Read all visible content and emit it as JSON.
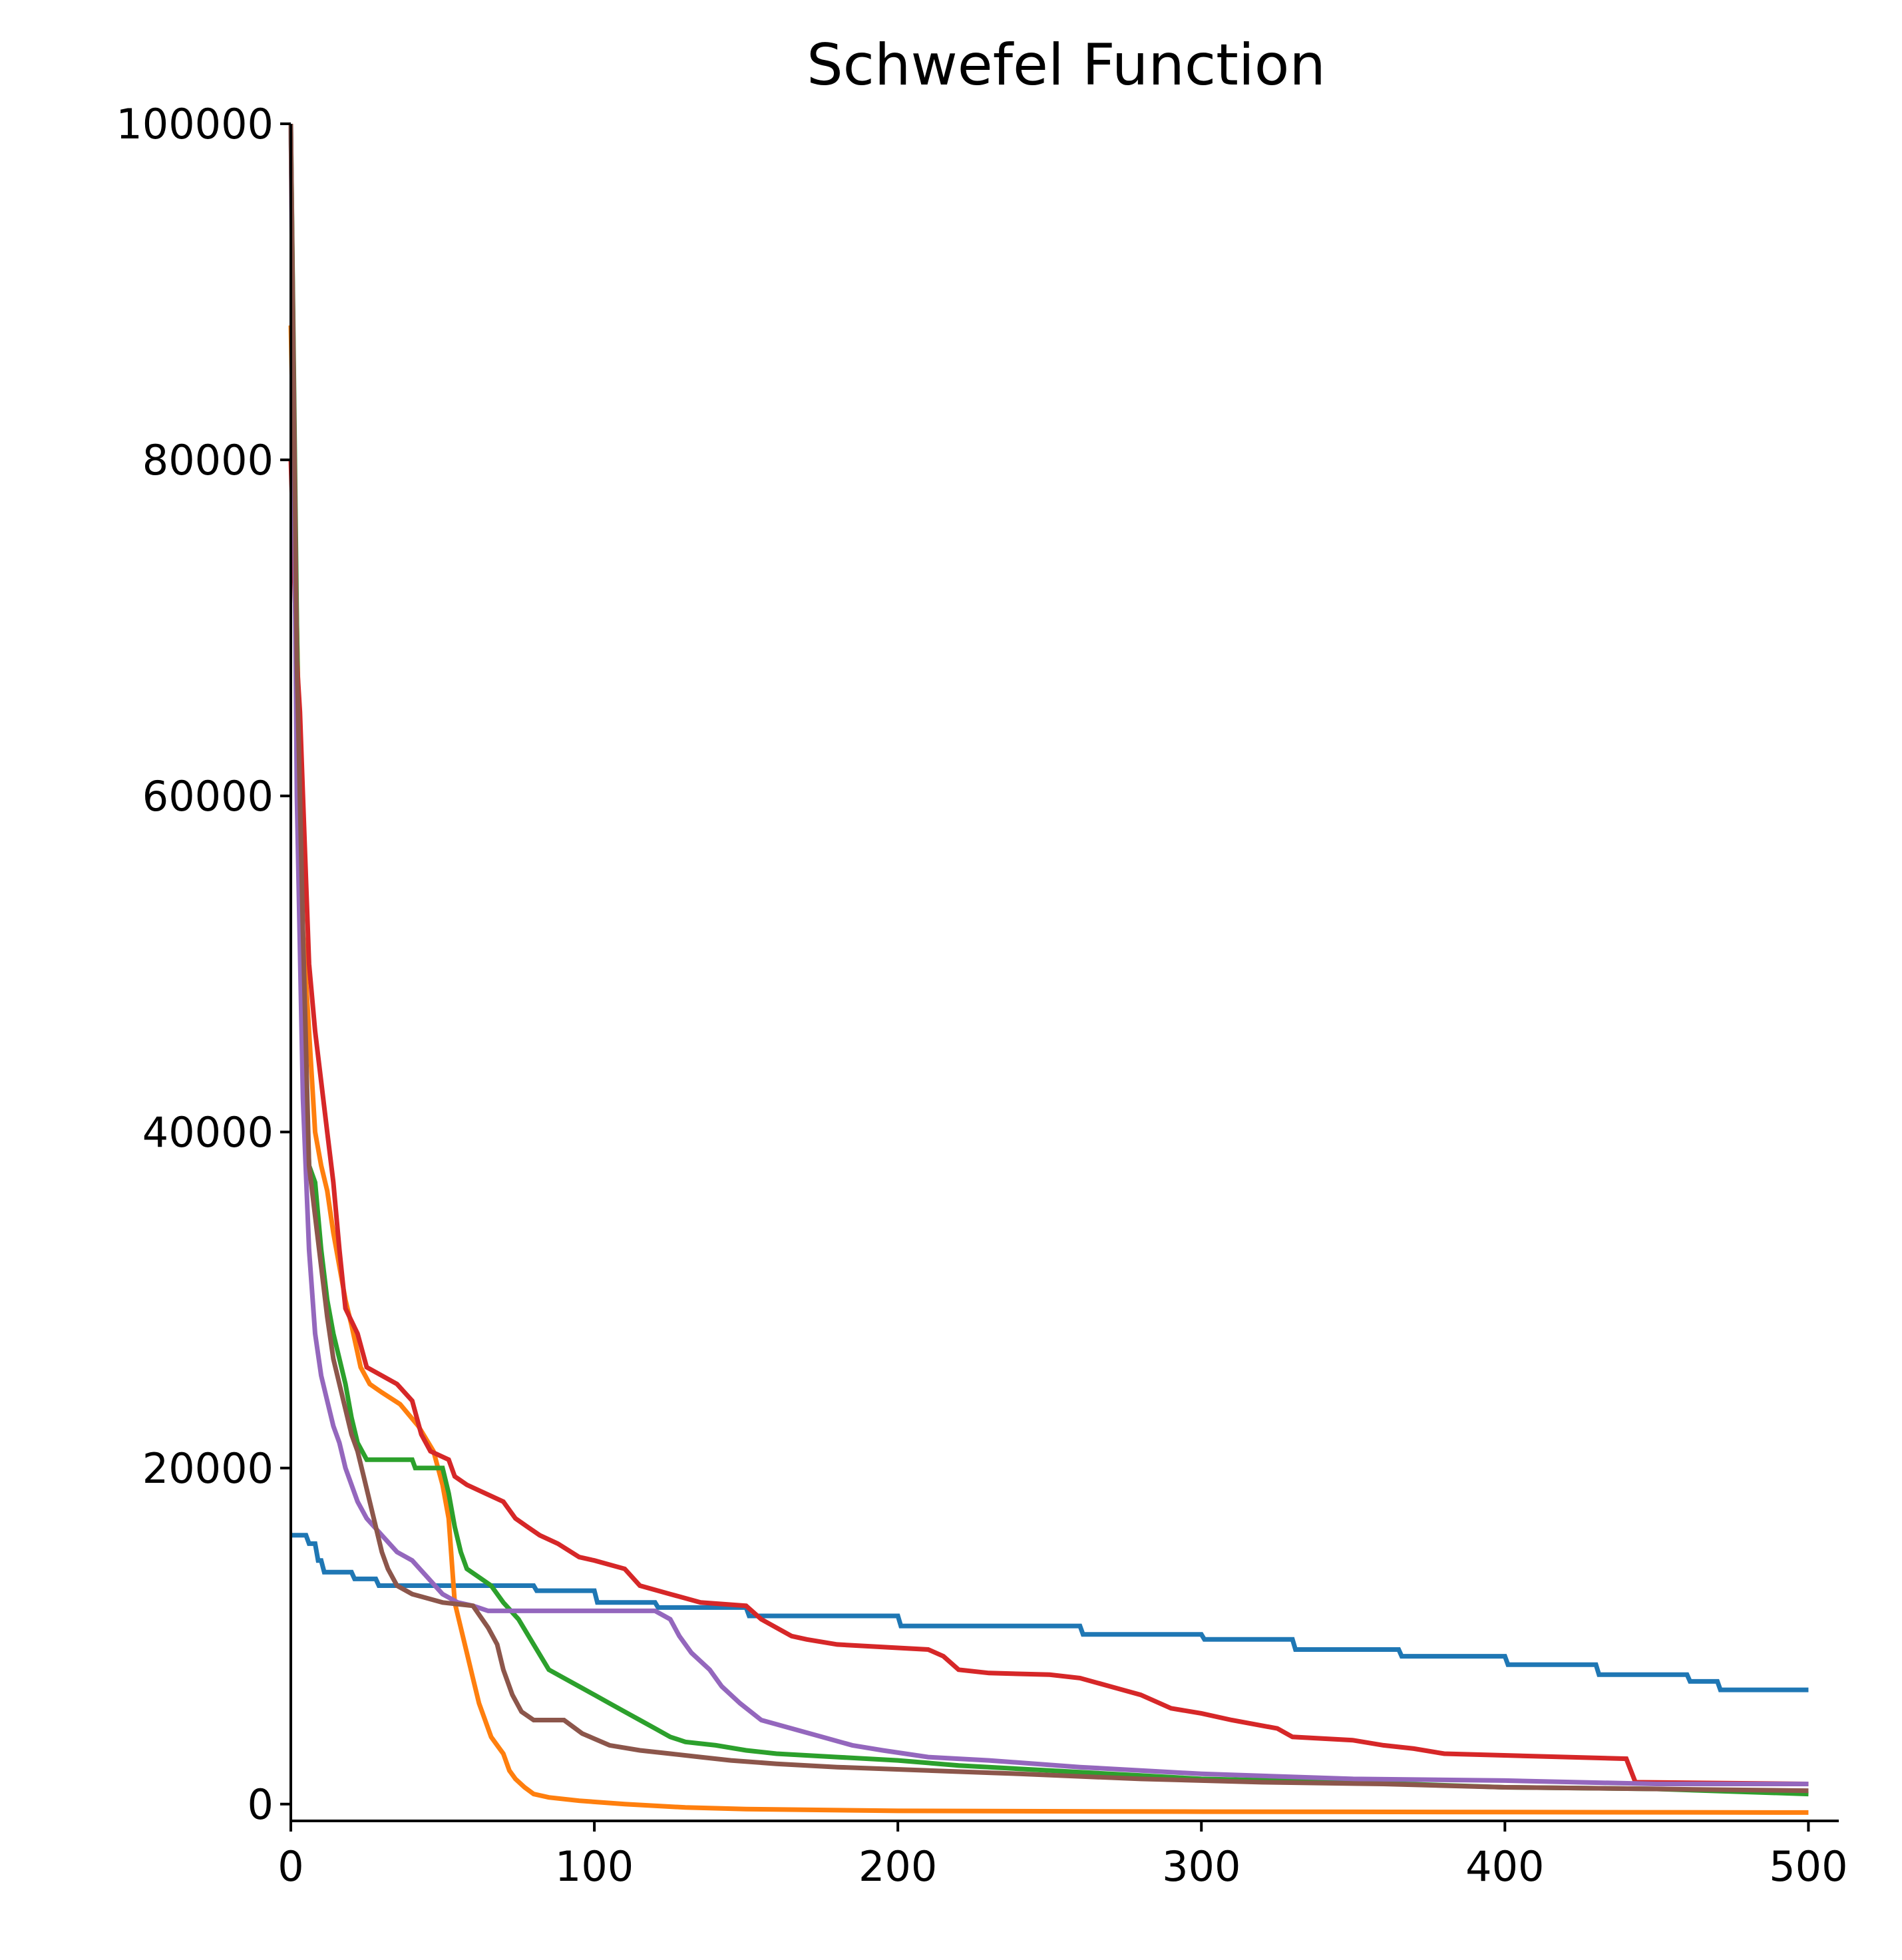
{
  "chart_data": {
    "type": "line",
    "title": "Schwefel Function",
    "xlabel": "",
    "ylabel": "",
    "xlim": [
      0,
      510
    ],
    "ylim": [
      -1000,
      100000
    ],
    "x_ticks": [
      "0",
      "100",
      "200",
      "300",
      "400",
      "500"
    ],
    "y_ticks": [
      "0",
      "20000",
      "40000",
      "60000",
      "80000",
      "100000"
    ],
    "grid": false,
    "legend": "none",
    "series": [
      {
        "color": "#1f77b4",
        "points": [
          [
            0,
            16000
          ],
          [
            5,
            16000
          ],
          [
            6,
            15500
          ],
          [
            8,
            15500
          ],
          [
            9,
            14500
          ],
          [
            10,
            14500
          ],
          [
            11,
            13800
          ],
          [
            20,
            13800
          ],
          [
            21,
            13400
          ],
          [
            28,
            13400
          ],
          [
            29,
            13000
          ],
          [
            80,
            13000
          ],
          [
            81,
            12700
          ],
          [
            100,
            12700
          ],
          [
            101,
            12000
          ],
          [
            120,
            12000
          ],
          [
            121,
            11700
          ],
          [
            150,
            11700
          ],
          [
            151,
            11200
          ],
          [
            200,
            11200
          ],
          [
            201,
            10600
          ],
          [
            260,
            10600
          ],
          [
            261,
            10100
          ],
          [
            300,
            10100
          ],
          [
            301,
            9800
          ],
          [
            330,
            9800
          ],
          [
            331,
            9200
          ],
          [
            365,
            9200
          ],
          [
            366,
            8800
          ],
          [
            400,
            8800
          ],
          [
            401,
            8300
          ],
          [
            430,
            8300
          ],
          [
            431,
            7700
          ],
          [
            460,
            7700
          ],
          [
            461,
            7300
          ],
          [
            470,
            7300
          ],
          [
            471,
            6800
          ],
          [
            500,
            6800
          ]
        ]
      },
      {
        "color": "#ff7f0e",
        "points": [
          [
            0,
            88000
          ],
          [
            2,
            70000
          ],
          [
            4,
            52000
          ],
          [
            6,
            46000
          ],
          [
            8,
            40000
          ],
          [
            10,
            38000
          ],
          [
            12,
            36500
          ],
          [
            14,
            34000
          ],
          [
            16,
            32000
          ],
          [
            18,
            30000
          ],
          [
            20,
            28500
          ],
          [
            23,
            26000
          ],
          [
            26,
            25000
          ],
          [
            30,
            24500
          ],
          [
            36,
            23800
          ],
          [
            42,
            22500
          ],
          [
            47,
            21000
          ],
          [
            50,
            19000
          ],
          [
            52,
            17000
          ],
          [
            54,
            12000
          ],
          [
            56,
            10500
          ],
          [
            58,
            9000
          ],
          [
            60,
            7500
          ],
          [
            62,
            6000
          ],
          [
            64,
            5000
          ],
          [
            66,
            4000
          ],
          [
            68,
            3500
          ],
          [
            70,
            3000
          ],
          [
            72,
            2000
          ],
          [
            74,
            1500
          ],
          [
            77,
            1000
          ],
          [
            80,
            600
          ],
          [
            85,
            400
          ],
          [
            95,
            200
          ],
          [
            110,
            0
          ],
          [
            130,
            -200
          ],
          [
            150,
            -300
          ],
          [
            200,
            -400
          ],
          [
            300,
            -450
          ],
          [
            500,
            -500
          ]
        ]
      },
      {
        "color": "#2ca02c",
        "points": [
          [
            0,
            100000
          ],
          [
            2,
            70000
          ],
          [
            4,
            48000
          ],
          [
            6,
            38000
          ],
          [
            8,
            37000
          ],
          [
            10,
            33000
          ],
          [
            12,
            30000
          ],
          [
            14,
            28000
          ],
          [
            16,
            26500
          ],
          [
            18,
            25000
          ],
          [
            20,
            23000
          ],
          [
            22,
            21500
          ],
          [
            25,
            20500
          ],
          [
            40,
            20500
          ],
          [
            41,
            20000
          ],
          [
            50,
            20000
          ],
          [
            52,
            18500
          ],
          [
            54,
            16500
          ],
          [
            56,
            15000
          ],
          [
            58,
            14000
          ],
          [
            62,
            13500
          ],
          [
            66,
            13000
          ],
          [
            70,
            12000
          ],
          [
            75,
            11000
          ],
          [
            80,
            9500
          ],
          [
            85,
            8000
          ],
          [
            90,
            7500
          ],
          [
            95,
            7000
          ],
          [
            100,
            6500
          ],
          [
            105,
            6000
          ],
          [
            110,
            5500
          ],
          [
            115,
            5000
          ],
          [
            120,
            4500
          ],
          [
            125,
            4000
          ],
          [
            130,
            3700
          ],
          [
            140,
            3500
          ],
          [
            150,
            3200
          ],
          [
            160,
            3000
          ],
          [
            180,
            2800
          ],
          [
            200,
            2600
          ],
          [
            220,
            2300
          ],
          [
            250,
            2000
          ],
          [
            280,
            1700
          ],
          [
            300,
            1500
          ],
          [
            350,
            1300
          ],
          [
            400,
            1000
          ],
          [
            450,
            900
          ],
          [
            500,
            600
          ]
        ]
      },
      {
        "color": "#d62728",
        "points": [
          [
            0,
            80000
          ],
          [
            2,
            68000
          ],
          [
            3,
            65000
          ],
          [
            4,
            60000
          ],
          [
            5,
            55000
          ],
          [
            6,
            50000
          ],
          [
            8,
            46000
          ],
          [
            10,
            43000
          ],
          [
            12,
            40000
          ],
          [
            14,
            37000
          ],
          [
            16,
            33000
          ],
          [
            18,
            29500
          ],
          [
            22,
            28000
          ],
          [
            25,
            26000
          ],
          [
            30,
            25500
          ],
          [
            35,
            25000
          ],
          [
            40,
            24000
          ],
          [
            43,
            22000
          ],
          [
            46,
            21000
          ],
          [
            52,
            20500
          ],
          [
            54,
            19500
          ],
          [
            58,
            19000
          ],
          [
            64,
            18500
          ],
          [
            70,
            18000
          ],
          [
            74,
            17000
          ],
          [
            78,
            16500
          ],
          [
            82,
            16000
          ],
          [
            88,
            15500
          ],
          [
            95,
            14700
          ],
          [
            100,
            14500
          ],
          [
            110,
            14000
          ],
          [
            115,
            13000
          ],
          [
            125,
            12500
          ],
          [
            135,
            12000
          ],
          [
            150,
            11800
          ],
          [
            155,
            11000
          ],
          [
            160,
            10500
          ],
          [
            165,
            10000
          ],
          [
            170,
            9800
          ],
          [
            180,
            9500
          ],
          [
            200,
            9300
          ],
          [
            210,
            9200
          ],
          [
            215,
            8800
          ],
          [
            220,
            8000
          ],
          [
            230,
            7800
          ],
          [
            250,
            7700
          ],
          [
            260,
            7500
          ],
          [
            270,
            7000
          ],
          [
            280,
            6500
          ],
          [
            290,
            5700
          ],
          [
            300,
            5400
          ],
          [
            310,
            5000
          ],
          [
            325,
            4500
          ],
          [
            330,
            4000
          ],
          [
            350,
            3800
          ],
          [
            360,
            3500
          ],
          [
            370,
            3300
          ],
          [
            380,
            3000
          ],
          [
            440,
            2700
          ],
          [
            443,
            1300
          ],
          [
            500,
            1200
          ]
        ]
      },
      {
        "color": "#9467bd",
        "points": [
          [
            0,
            100000
          ],
          [
            2,
            60000
          ],
          [
            4,
            42000
          ],
          [
            6,
            33000
          ],
          [
            8,
            28000
          ],
          [
            10,
            25500
          ],
          [
            12,
            24000
          ],
          [
            14,
            22500
          ],
          [
            16,
            21500
          ],
          [
            18,
            20000
          ],
          [
            20,
            19000
          ],
          [
            22,
            18000
          ],
          [
            25,
            17000
          ],
          [
            30,
            16000
          ],
          [
            35,
            15000
          ],
          [
            40,
            14500
          ],
          [
            45,
            13500
          ],
          [
            50,
            12500
          ],
          [
            55,
            12000
          ],
          [
            60,
            11800
          ],
          [
            65,
            11500
          ],
          [
            70,
            11500
          ],
          [
            120,
            11500
          ],
          [
            125,
            11000
          ],
          [
            128,
            10000
          ],
          [
            132,
            9000
          ],
          [
            138,
            8000
          ],
          [
            142,
            7000
          ],
          [
            148,
            6000
          ],
          [
            155,
            5000
          ],
          [
            165,
            4500
          ],
          [
            175,
            4000
          ],
          [
            185,
            3500
          ],
          [
            195,
            3200
          ],
          [
            210,
            2800
          ],
          [
            230,
            2600
          ],
          [
            260,
            2200
          ],
          [
            300,
            1800
          ],
          [
            350,
            1500
          ],
          [
            400,
            1400
          ],
          [
            450,
            1200
          ],
          [
            500,
            1200
          ]
        ]
      },
      {
        "color": "#8c564b",
        "points": [
          [
            0,
            100000
          ],
          [
            2,
            68000
          ],
          [
            4,
            52000
          ],
          [
            6,
            38000
          ],
          [
            8,
            35000
          ],
          [
            10,
            32000
          ],
          [
            12,
            29000
          ],
          [
            14,
            26500
          ],
          [
            16,
            25000
          ],
          [
            18,
            23500
          ],
          [
            20,
            22000
          ],
          [
            22,
            21000
          ],
          [
            24,
            19500
          ],
          [
            26,
            18000
          ],
          [
            28,
            16500
          ],
          [
            30,
            15000
          ],
          [
            32,
            14000
          ],
          [
            35,
            13000
          ],
          [
            40,
            12500
          ],
          [
            50,
            12000
          ],
          [
            60,
            11800
          ],
          [
            65,
            10500
          ],
          [
            68,
            9500
          ],
          [
            70,
            8000
          ],
          [
            73,
            6500
          ],
          [
            76,
            5500
          ],
          [
            80,
            5000
          ],
          [
            90,
            5000
          ],
          [
            96,
            4200
          ],
          [
            105,
            3500
          ],
          [
            115,
            3200
          ],
          [
            125,
            3000
          ],
          [
            135,
            2800
          ],
          [
            145,
            2600
          ],
          [
            160,
            2400
          ],
          [
            180,
            2200
          ],
          [
            210,
            2000
          ],
          [
            240,
            1800
          ],
          [
            280,
            1500
          ],
          [
            320,
            1300
          ],
          [
            360,
            1200
          ],
          [
            400,
            1000
          ],
          [
            450,
            900
          ],
          [
            500,
            800
          ]
        ]
      }
    ]
  }
}
